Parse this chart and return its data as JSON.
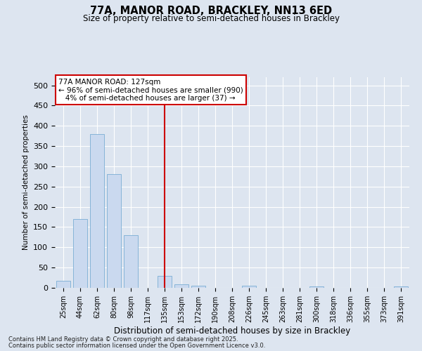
{
  "title1": "77A, MANOR ROAD, BRACKLEY, NN13 6ED",
  "title2": "Size of property relative to semi-detached houses in Brackley",
  "xlabel": "Distribution of semi-detached houses by size in Brackley",
  "ylabel": "Number of semi-detached properties",
  "categories": [
    "25sqm",
    "44sqm",
    "62sqm",
    "80sqm",
    "98sqm",
    "117sqm",
    "135sqm",
    "153sqm",
    "172sqm",
    "190sqm",
    "208sqm",
    "226sqm",
    "245sqm",
    "263sqm",
    "281sqm",
    "300sqm",
    "318sqm",
    "336sqm",
    "355sqm",
    "373sqm",
    "391sqm"
  ],
  "values": [
    17,
    170,
    380,
    280,
    130,
    0,
    30,
    8,
    5,
    0,
    0,
    5,
    0,
    0,
    0,
    3,
    0,
    0,
    0,
    0,
    3
  ],
  "bar_color": "#cad9ef",
  "bar_edgecolor": "#7aadd4",
  "vline_index": 6,
  "vline_color": "#cc0000",
  "annotation_text": "77A MANOR ROAD: 127sqm\n← 96% of semi-detached houses are smaller (990)\n   4% of semi-detached houses are larger (37) →",
  "annotation_box_facecolor": "#ffffff",
  "annotation_box_edgecolor": "#cc0000",
  "ylim": [
    0,
    520
  ],
  "yticks": [
    0,
    50,
    100,
    150,
    200,
    250,
    300,
    350,
    400,
    450,
    500
  ],
  "background_color": "#dde5f0",
  "plot_background_color": "#dde5f0",
  "grid_color": "#ffffff",
  "footer1": "Contains HM Land Registry data © Crown copyright and database right 2025.",
  "footer2": "Contains public sector information licensed under the Open Government Licence v3.0."
}
